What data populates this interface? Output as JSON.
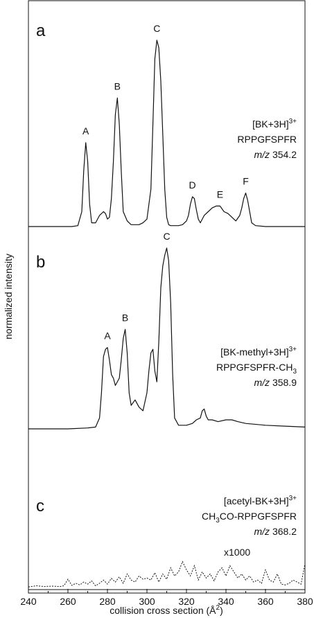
{
  "chart_data": {
    "type": "line",
    "xlabel": "collision cross section (Å",
    "xlabel_sup": "2",
    "xlabel_close": ")",
    "ylabel": "normalized intensity",
    "xlim": [
      240,
      380
    ],
    "xticks": [
      240,
      260,
      280,
      300,
      320,
      340,
      360,
      380
    ],
    "panels": [
      {
        "letter": "a",
        "ion_line1": "[BK+3H]",
        "ion_line1_sup": "3+",
        "sequence_main": "RPPGFSPFR",
        "sequence_sub": "",
        "sequence_tail": "",
        "mz_italic": "m/z",
        "mz_value": " 354.2",
        "style": "solid",
        "ylim": [
          0,
          1
        ],
        "peaks": [
          {
            "label": "A",
            "x": 269,
            "y": 0.45
          },
          {
            "label": "B",
            "x": 285,
            "y": 0.69
          },
          {
            "label": "C",
            "x": 305,
            "y": 1.0
          },
          {
            "label": "D",
            "x": 323,
            "y": 0.16
          },
          {
            "label": "E",
            "x": 337,
            "y": 0.11
          },
          {
            "label": "F",
            "x": 350,
            "y": 0.18
          }
        ],
        "series": {
          "x": [
            240,
            255,
            262,
            265,
            267,
            268,
            269,
            270,
            271,
            272,
            274,
            276,
            278,
            279,
            280,
            281,
            282,
            283,
            284,
            285,
            286,
            287,
            288,
            290,
            292,
            294,
            296,
            298,
            300,
            302,
            303,
            304,
            305,
            306,
            307,
            308,
            309,
            310,
            311,
            312,
            314,
            316,
            318,
            320,
            321,
            322,
            323,
            324,
            325,
            326,
            327,
            329,
            331,
            333,
            335,
            337,
            339,
            341,
            343,
            345,
            347,
            348,
            349,
            350,
            351,
            352,
            353,
            355,
            360,
            370,
            380
          ],
          "y": [
            0.0,
            0.0,
            0.0,
            0.005,
            0.08,
            0.3,
            0.45,
            0.35,
            0.12,
            0.02,
            0.02,
            0.06,
            0.08,
            0.07,
            0.04,
            0.05,
            0.15,
            0.35,
            0.6,
            0.69,
            0.55,
            0.3,
            0.08,
            0.03,
            0.01,
            0.01,
            0.01,
            0.02,
            0.04,
            0.2,
            0.55,
            0.9,
            1.0,
            0.96,
            0.78,
            0.5,
            0.2,
            0.05,
            0.01,
            0.005,
            0.005,
            0.005,
            0.01,
            0.03,
            0.06,
            0.12,
            0.16,
            0.15,
            0.09,
            0.04,
            0.02,
            0.06,
            0.08,
            0.1,
            0.11,
            0.11,
            0.08,
            0.07,
            0.05,
            0.03,
            0.06,
            0.1,
            0.15,
            0.18,
            0.14,
            0.08,
            0.02,
            0.005,
            0.0,
            0.0,
            0.0
          ]
        }
      },
      {
        "letter": "b",
        "ion_line1": "[BK-methyl+3H]",
        "ion_line1_sup": "3+",
        "sequence_main": "RPPGFSPFR-CH",
        "sequence_sub": "3",
        "sequence_tail": "",
        "mz_italic": "m/z",
        "mz_value": " 358.9",
        "style": "solid",
        "ylim": [
          0,
          1
        ],
        "peaks": [
          {
            "label": "A",
            "x": 280,
            "y": 0.45
          },
          {
            "label": "B",
            "x": 289,
            "y": 0.55
          },
          {
            "label": "C",
            "x": 310,
            "y": 1.0
          }
        ],
        "series": {
          "x": [
            240,
            260,
            270,
            274,
            276,
            277,
            278,
            279,
            280,
            281,
            282,
            283,
            284,
            286,
            287,
            288,
            289,
            290,
            291,
            292,
            294,
            296,
            298,
            300,
            301,
            302,
            303,
            304,
            305,
            306,
            307,
            308,
            309,
            310,
            311,
            312,
            313,
            314,
            316,
            320,
            323,
            325,
            327,
            328,
            329,
            330,
            331,
            333,
            336,
            340,
            343,
            346,
            350,
            360,
            370,
            380
          ],
          "y": [
            0.0,
            0.0,
            0.005,
            0.01,
            0.06,
            0.2,
            0.4,
            0.44,
            0.45,
            0.38,
            0.3,
            0.28,
            0.24,
            0.28,
            0.38,
            0.5,
            0.55,
            0.42,
            0.2,
            0.13,
            0.16,
            0.12,
            0.1,
            0.2,
            0.32,
            0.42,
            0.44,
            0.32,
            0.26,
            0.48,
            0.78,
            0.9,
            0.96,
            1.0,
            0.93,
            0.7,
            0.3,
            0.06,
            0.02,
            0.02,
            0.03,
            0.05,
            0.06,
            0.1,
            0.11,
            0.07,
            0.05,
            0.05,
            0.04,
            0.05,
            0.05,
            0.04,
            0.03,
            0.02,
            0.015,
            0.01
          ]
        }
      },
      {
        "letter": "c",
        "ion_line1": "[acetyl-BK+3H]",
        "ion_line1_sup": "3+",
        "sequence_main": "CH",
        "sequence_sub": "3",
        "sequence_tail": "CO-RPPGFSPFR",
        "mz_italic": "m/z",
        "mz_value": " 368.2",
        "style": "dotted",
        "scale_label": "x1000",
        "ylim": [
          0,
          1
        ],
        "peaks": [],
        "series": {
          "x": [
            240,
            244,
            248,
            252,
            256,
            258,
            260,
            262,
            264,
            266,
            268,
            270,
            272,
            274,
            276,
            278,
            280,
            282,
            284,
            286,
            288,
            290,
            292,
            294,
            296,
            298,
            300,
            302,
            304,
            306,
            308,
            310,
            312,
            314,
            316,
            318,
            320,
            322,
            324,
            326,
            328,
            330,
            332,
            334,
            336,
            338,
            340,
            342,
            344,
            346,
            348,
            350,
            352,
            354,
            356,
            358,
            360,
            362,
            364,
            366,
            368,
            370,
            372,
            374,
            376,
            378,
            380
          ],
          "y": [
            0.03,
            0.06,
            0.04,
            0.05,
            0.04,
            0.06,
            0.22,
            0.07,
            0.12,
            0.08,
            0.15,
            0.1,
            0.18,
            0.06,
            0.12,
            0.2,
            0.1,
            0.24,
            0.15,
            0.28,
            0.12,
            0.35,
            0.2,
            0.15,
            0.3,
            0.22,
            0.25,
            0.2,
            0.38,
            0.15,
            0.35,
            0.22,
            0.5,
            0.3,
            0.4,
            0.65,
            0.45,
            0.3,
            0.55,
            0.2,
            0.4,
            0.25,
            0.35,
            0.18,
            0.4,
            0.5,
            0.3,
            0.55,
            0.4,
            0.25,
            0.35,
            0.2,
            0.3,
            0.15,
            0.2,
            0.12,
            0.45,
            0.2,
            0.15,
            0.35,
            0.1,
            0.08,
            0.12,
            0.2,
            0.15,
            0.1,
            0.6
          ]
        }
      }
    ]
  }
}
